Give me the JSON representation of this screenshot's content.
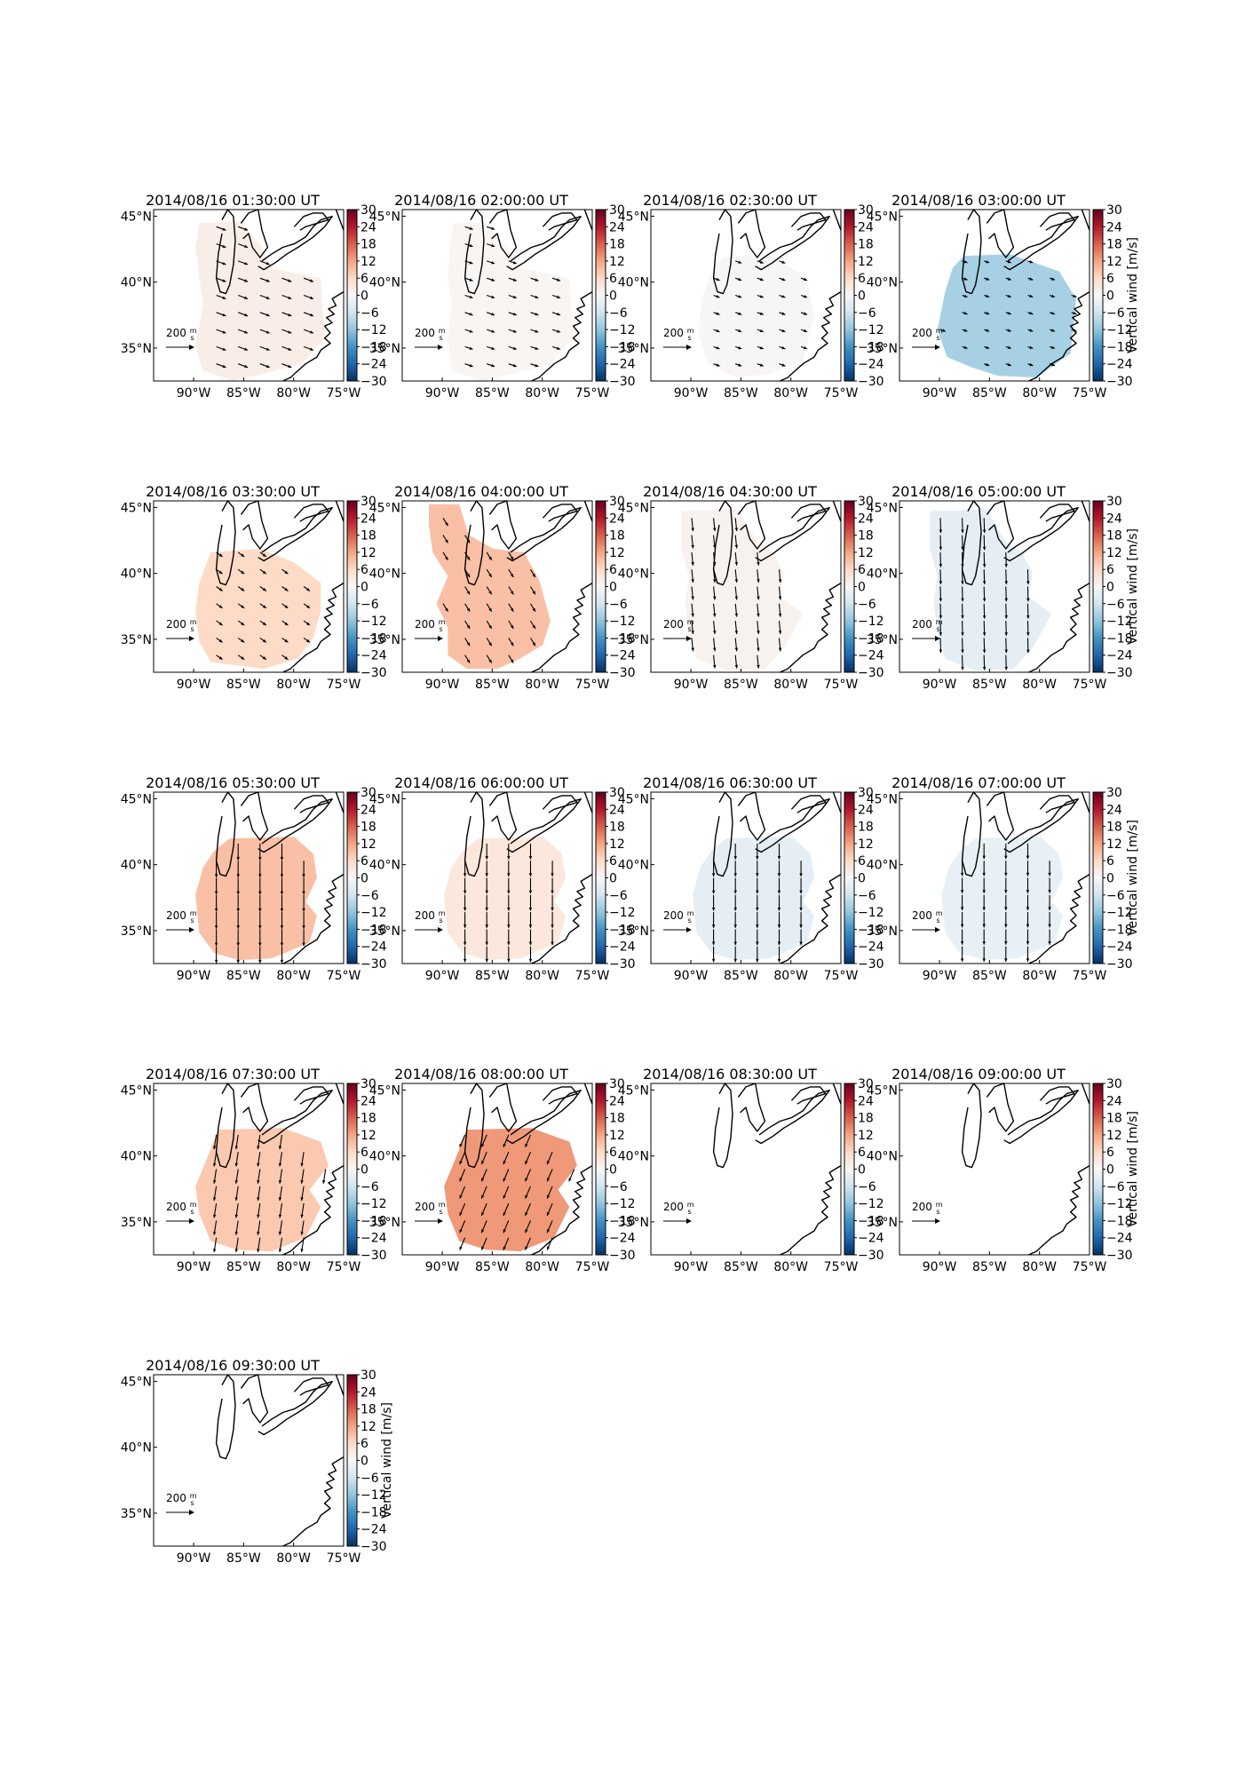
{
  "chart_data": {
    "type": "heatmap",
    "colorbar": {
      "label": "Vertical wind [m/s]",
      "ticks": [
        30,
        24,
        18,
        12,
        6,
        0,
        -6,
        -12,
        -18,
        -24,
        -30
      ],
      "range": [
        -30,
        30
      ],
      "colormap": "RdBu_r",
      "stops": [
        "#053061",
        "#2166ac",
        "#4393c3",
        "#92c5de",
        "#d1e5f0",
        "#f7f7f7",
        "#fddbc7",
        "#f4a582",
        "#d6604d",
        "#b2182b",
        "#67001f"
      ]
    },
    "axes": {
      "x_ticks": [
        "90°W",
        "85°W",
        "80°W",
        "75°W"
      ],
      "x_values": [
        -90,
        -85,
        -80,
        -75
      ],
      "y_ticks": [
        "45°N",
        "40°N",
        "35°N"
      ],
      "y_values": [
        45,
        40,
        35
      ],
      "lon_range": [
        -94,
        -75
      ],
      "lat_range": [
        32.5,
        45.5
      ]
    },
    "reference_arrow": {
      "value": 200,
      "label": "200",
      "unit_numerator": "m",
      "unit_denominator": "s"
    },
    "panels": [
      {
        "title": "2014/08/16 01:30:00 UT",
        "vertical_wind": 2,
        "coverage": "pre-A",
        "horizontal_wind": {
          "u": 110,
          "v": -40
        }
      },
      {
        "title": "2014/08/16 02:00:00 UT",
        "vertical_wind": 0.5,
        "coverage": "pre-B",
        "horizontal_wind": {
          "u": 90,
          "v": -30
        }
      },
      {
        "title": "2014/08/16 02:30:00 UT",
        "vertical_wind": 0.3,
        "coverage": "pre-C",
        "horizontal_wind": {
          "u": 70,
          "v": -25
        }
      },
      {
        "title": "2014/08/16 03:00:00 UT",
        "vertical_wind": -10,
        "coverage": "pre-D",
        "horizontal_wind": {
          "u": 60,
          "v": -20
        }
      },
      {
        "title": "2014/08/16 03:30:00 UT",
        "vertical_wind": 6,
        "coverage": "main-D",
        "horizontal_wind": {
          "u": 70,
          "v": -50
        }
      },
      {
        "title": "2014/08/16 04:00:00 UT",
        "vertical_wind": 9,
        "coverage": "main-A",
        "horizontal_wind": {
          "u": 55,
          "v": -90
        }
      },
      {
        "title": "2014/08/16 04:30:00 UT",
        "vertical_wind": 1,
        "coverage": "main-B",
        "horizontal_wind": {
          "u": 15,
          "v": -150
        }
      },
      {
        "title": "2014/08/16 05:00:00 UT",
        "vertical_wind": -3,
        "coverage": "main-B",
        "horizontal_wind": {
          "u": 5,
          "v": -170
        }
      },
      {
        "title": "2014/08/16 05:30:00 UT",
        "vertical_wind": 9,
        "coverage": "main-C",
        "horizontal_wind": {
          "u": 0,
          "v": -190
        }
      },
      {
        "title": "2014/08/16 06:00:00 UT",
        "vertical_wind": 3.5,
        "coverage": "main-C",
        "horizontal_wind": {
          "u": 0,
          "v": -180
        }
      },
      {
        "title": "2014/08/16 06:30:00 UT",
        "vertical_wind": -3,
        "coverage": "main-C",
        "horizontal_wind": {
          "u": 0,
          "v": -180
        }
      },
      {
        "title": "2014/08/16 07:00:00 UT",
        "vertical_wind": -2.5,
        "coverage": "main-C",
        "horizontal_wind": {
          "u": 0,
          "v": -175
        }
      },
      {
        "title": "2014/08/16 07:30:00 UT",
        "vertical_wind": 8,
        "coverage": "main-E",
        "horizontal_wind": {
          "u": -25,
          "v": -165
        }
      },
      {
        "title": "2014/08/16 08:00:00 UT",
        "vertical_wind": 13,
        "coverage": "main-E",
        "horizontal_wind": {
          "u": -60,
          "v": -140
        }
      },
      {
        "title": "2014/08/16 08:30:00 UT",
        "vertical_wind": null,
        "coverage": "none",
        "horizontal_wind": null
      },
      {
        "title": "2014/08/16 09:00:00 UT",
        "vertical_wind": null,
        "coverage": "none",
        "horizontal_wind": null
      },
      {
        "title": "2014/08/16 09:30:00 UT",
        "vertical_wind": null,
        "coverage": "none",
        "horizontal_wind": null
      }
    ]
  }
}
